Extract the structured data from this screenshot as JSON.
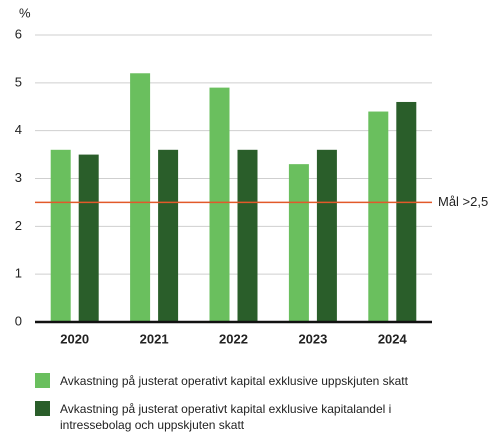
{
  "chart_data": {
    "type": "bar",
    "y_unit": "%",
    "categories": [
      "2020",
      "2021",
      "2022",
      "2023",
      "2024"
    ],
    "series": [
      {
        "name": "Avkastning på justerat operativt kapital exklusive uppskjuten skatt",
        "color": "#6abf5e",
        "values": [
          3.6,
          5.2,
          4.9,
          3.3,
          4.4
        ]
      },
      {
        "name": "Avkastning på justerat operativt kapital exklusive kapitalandel i intressebolag och uppskjuten skatt",
        "color": "#2a5e2a",
        "values": [
          3.5,
          3.6,
          3.6,
          3.6,
          4.6
        ]
      }
    ],
    "target": 2.5,
    "target_label": "Mål >2,5",
    "target_color": "#e2592a",
    "ylim": [
      0,
      6
    ],
    "yticks": [
      0,
      1,
      2,
      3,
      4,
      5,
      6
    ],
    "grid": true
  }
}
